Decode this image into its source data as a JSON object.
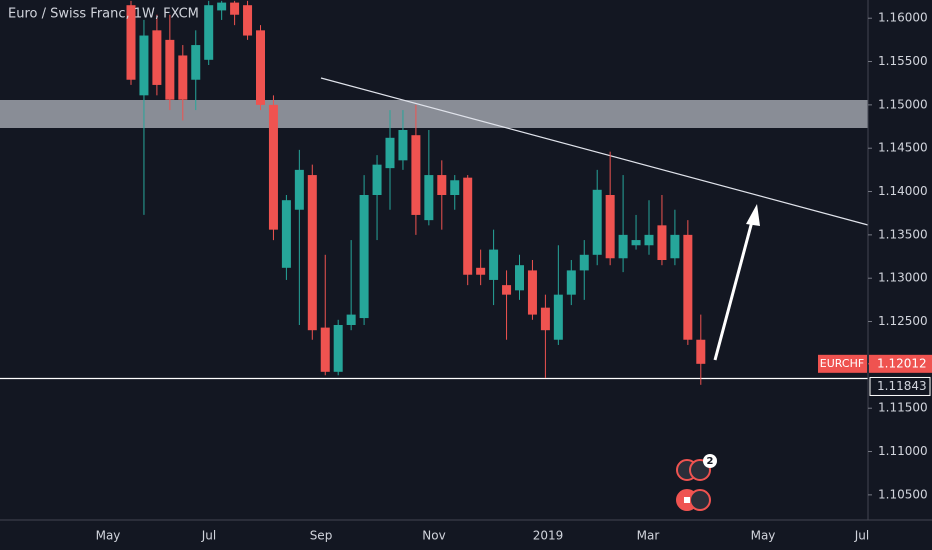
{
  "chart_data": {
    "type": "candlestick",
    "title": "Euro / Swiss Franc, 1W, FXCM",
    "open": [
      1.1615,
      1.1511,
      1.1586,
      1.1575,
      1.1557,
      1.1529,
      1.1552,
      1.1609,
      1.1618,
      1.1615,
      1.1586,
      1.15,
      1.1312,
      1.1379,
      1.1419,
      1.1243,
      1.1192,
      1.1246,
      1.1254,
      1.1396,
      1.1427,
      1.1436,
      1.1465,
      1.1367,
      1.1419,
      1.1396,
      1.1416,
      1.1312,
      1.1298,
      1.1292,
      1.1286,
      1.1309,
      1.1266,
      1.1229,
      1.1281,
      1.1309,
      1.1327,
      1.1396,
      1.1323,
      1.1338,
      1.1338,
      1.1361,
      1.1323,
      1.135,
      1.1229
    ],
    "high": [
      1.162,
      1.1598,
      1.1604,
      1.1604,
      1.1569,
      1.1586,
      1.162,
      1.162,
      1.162,
      1.162,
      1.1592,
      1.1511,
      1.1396,
      1.1448,
      1.1431,
      1.1327,
      1.1252,
      1.1344,
      1.1419,
      1.1442,
      1.1494,
      1.1494,
      1.15,
      1.1471,
      1.1436,
      1.1419,
      1.1419,
      1.1333,
      1.1356,
      1.1309,
      1.1327,
      1.1321,
      1.1281,
      1.1338,
      1.1321,
      1.1344,
      1.1425,
      1.1446,
      1.1419,
      1.1373,
      1.139,
      1.1396,
      1.1379,
      1.1367,
      1.1258
    ],
    "low": [
      1.1523,
      1.1373,
      1.1511,
      1.1494,
      1.1482,
      1.1494,
      1.1546,
      1.1598,
      1.1592,
      1.1575,
      1.1494,
      1.1344,
      1.1298,
      1.1246,
      1.1229,
      1.1188,
      1.1188,
      1.124,
      1.1246,
      1.1344,
      1.1379,
      1.1425,
      1.135,
      1.1361,
      1.1356,
      1.1379,
      1.1292,
      1.1292,
      1.1269,
      1.1229,
      1.1275,
      1.1252,
      1.1185,
      1.1223,
      1.1269,
      1.1275,
      1.1315,
      1.1315,
      1.1307,
      1.1333,
      1.1327,
      1.1315,
      1.1315,
      1.1223,
      1.1177
    ],
    "close": [
      1.1529,
      1.158,
      1.1523,
      1.1506,
      1.1506,
      1.1569,
      1.1615,
      1.1618,
      1.1604,
      1.158,
      1.15,
      1.1356,
      1.139,
      1.1425,
      1.124,
      1.1192,
      1.1246,
      1.1258,
      1.1396,
      1.1431,
      1.1462,
      1.1471,
      1.1373,
      1.1419,
      1.1396,
      1.1413,
      1.1304,
      1.1304,
      1.1333,
      1.1281,
      1.1315,
      1.1258,
      1.124,
      1.1281,
      1.1309,
      1.1327,
      1.1402,
      1.1323,
      1.135,
      1.1344,
      1.135,
      1.1321,
      1.135,
      1.1229,
      1.12012
    ],
    "up_color": "#26a69a",
    "down_color": "#ef5350",
    "ylim": [
      1.1021,
      1.1621
    ],
    "yticks": [
      {
        "value": 1.16,
        "label": "1.16000"
      },
      {
        "value": 1.155,
        "label": "1.15500"
      },
      {
        "value": 1.15,
        "label": "1.15000"
      },
      {
        "value": 1.145,
        "label": "1.14500"
      },
      {
        "value": 1.14,
        "label": "1.14000"
      },
      {
        "value": 1.135,
        "label": "1.13500"
      },
      {
        "value": 1.13,
        "label": "1.13000"
      },
      {
        "value": 1.125,
        "label": "1.12500"
      },
      {
        "value": 1.115,
        "label": "1.11500"
      },
      {
        "value": 1.11,
        "label": "1.11000"
      },
      {
        "value": 1.105,
        "label": "1.10500"
      }
    ],
    "x_labels": [
      "May",
      "Jul",
      "Sep",
      "Nov",
      "2019",
      "Mar",
      "May",
      "Jul"
    ],
    "symbol": "EURCHF",
    "last_price": {
      "value": 1.12012,
      "label": "1.12012"
    },
    "support_line": {
      "value": 1.11843,
      "label": "1.11843"
    },
    "event_badge": "2"
  }
}
